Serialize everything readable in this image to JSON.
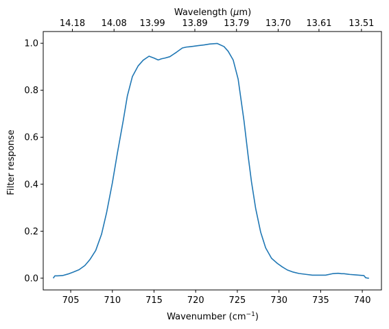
{
  "chart_data": {
    "type": "line",
    "xlabel": "Wavenumber (cm",
    "xlabel_sup": "−1",
    "xlabel_suffix": ")",
    "ylabel": "Filter response",
    "top_xlabel": "Wavelength (",
    "top_xlabel_mu": "μ",
    "top_xlabel_suffix": "m)",
    "xlim": [
      701.7,
      742.3
    ],
    "ylim": [
      -0.05,
      1.05
    ],
    "x_ticks": [
      705,
      710,
      715,
      720,
      725,
      730,
      735,
      740
    ],
    "y_ticks": [
      0.0,
      0.2,
      0.4,
      0.6,
      0.8,
      1.0
    ],
    "y_tick_labels": [
      "0.0",
      "0.2",
      "0.4",
      "0.6",
      "0.8",
      "1.0"
    ],
    "top_ticks_wavenumber": [
      705.2,
      710.2,
      714.8,
      719.9,
      724.9,
      729.9,
      734.8,
      739.9
    ],
    "top_tick_labels": [
      "14.18",
      "14.08",
      "13.99",
      "13.89",
      "13.79",
      "13.70",
      "13.61",
      "13.51"
    ],
    "grid": false,
    "legend": "none",
    "series": [
      {
        "color": "#1f77b4",
        "x": [
          702.9,
          703.1,
          703.4,
          704.0,
          704.7,
          705.3,
          706.0,
          706.7,
          707.3,
          708.0,
          708.7,
          709.3,
          710.0,
          710.6,
          711.3,
          711.8,
          712.4,
          713.1,
          713.7,
          714.4,
          715.0,
          715.5,
          715.9,
          716.3,
          716.9,
          717.7,
          718.4,
          718.9,
          719.2,
          719.7,
          720.3,
          721.0,
          721.7,
          722.6,
          723.4,
          723.9,
          724.5,
          725.1,
          725.8,
          726.3,
          726.7,
          727.2,
          727.8,
          728.4,
          729.1,
          729.8,
          730.4,
          731.0,
          731.7,
          732.4,
          733.3,
          734.0,
          734.8,
          735.6,
          736.4,
          737.1,
          737.5,
          737.8,
          738.5,
          739.2,
          740.2,
          740.4,
          740.7,
          740.8
        ],
        "y": [
          0.0,
          0.01,
          0.01,
          0.011,
          0.018,
          0.026,
          0.036,
          0.054,
          0.079,
          0.118,
          0.187,
          0.278,
          0.406,
          0.532,
          0.67,
          0.776,
          0.858,
          0.904,
          0.928,
          0.945,
          0.937,
          0.929,
          0.934,
          0.937,
          0.943,
          0.962,
          0.98,
          0.984,
          0.985,
          0.987,
          0.99,
          0.993,
          0.997,
          0.999,
          0.986,
          0.966,
          0.929,
          0.847,
          0.67,
          0.52,
          0.41,
          0.297,
          0.196,
          0.129,
          0.085,
          0.063,
          0.048,
          0.035,
          0.026,
          0.02,
          0.016,
          0.013,
          0.013,
          0.013,
          0.019,
          0.021,
          0.019,
          0.019,
          0.016,
          0.014,
          0.011,
          0.002,
          0.0,
          0.0
        ]
      }
    ]
  }
}
